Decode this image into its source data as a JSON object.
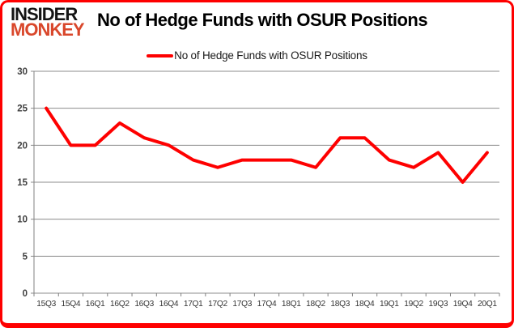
{
  "logo": {
    "line1": "INSIDER",
    "line2": "MONKEY"
  },
  "header": {
    "title": "No of Hedge Funds with OSUR Positions"
  },
  "legend": {
    "label": "No of Hedge Funds with OSUR Positions"
  },
  "colors": {
    "line": "#fe0000",
    "frame_border": "#fe0000",
    "logo_text": "#141414",
    "logo_accent": "#d9472b",
    "grid": "#8c8c8c",
    "axis": "#808080",
    "y_label": "#3f3f3f",
    "x_label": "#333333",
    "title_text": "#000000"
  },
  "chart_data": {
    "type": "line",
    "title": "No of Hedge Funds with OSUR Positions",
    "categories": [
      "15Q3",
      "15Q4",
      "16Q1",
      "16Q2",
      "16Q3",
      "16Q4",
      "17Q1",
      "17Q2",
      "17Q3",
      "17Q4",
      "18Q1",
      "18Q2",
      "18Q3",
      "18Q4",
      "19Q1",
      "19Q2",
      "19Q3",
      "19Q4",
      "20Q1"
    ],
    "series": [
      {
        "name": "No of Hedge Funds with OSUR Positions",
        "values": [
          25,
          20,
          20,
          23,
          21,
          20,
          18,
          17,
          18,
          18,
          18,
          17,
          21,
          21,
          18,
          17,
          19,
          15,
          19
        ]
      }
    ],
    "xlabel": "",
    "ylabel": "",
    "ylim": [
      0,
      30
    ],
    "ytick_interval": 5,
    "grid": true,
    "legend_position": "top"
  }
}
